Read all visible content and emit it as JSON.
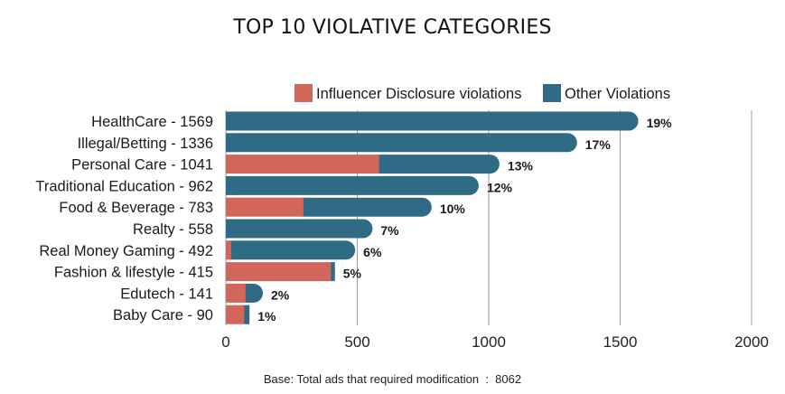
{
  "chart_data": {
    "type": "bar",
    "orientation": "horizontal",
    "stacked": true,
    "title": "TOP 10 VIOLATIVE CATEGORIES",
    "categories": [
      "HealthCare - 1569",
      "Illegal/Betting - 1336",
      "Personal Care - 1041",
      "Traditional Education - 962",
      "Food & Beverage - 783",
      "Realty - 558",
      "Real Money Gaming - 492",
      "Fashion & lifestyle - 415",
      "Edutech - 141",
      "Baby Care - 90"
    ],
    "series": [
      {
        "name": "Influencer Disclosure violations",
        "color": "#d2665a",
        "values": [
          0,
          0,
          583,
          0,
          295,
          0,
          20,
          400,
          75,
          70
        ]
      },
      {
        "name": "Other Violations",
        "color": "#2f6b85",
        "values": [
          1569,
          1336,
          458,
          962,
          488,
          558,
          472,
          15,
          66,
          20
        ]
      }
    ],
    "percent_labels": [
      "19%",
      "17%",
      "13%",
      "12%",
      "10%",
      "7%",
      "6%",
      "5%",
      "2%",
      "1%"
    ],
    "x_ticks": [
      0,
      500,
      1000,
      1500,
      2000
    ],
    "xlim": [
      0,
      2000
    ],
    "grid": "vertical",
    "legend_position": "top-right"
  },
  "footnote": {
    "label": "Base: Total ads that required modification  :  8062"
  }
}
